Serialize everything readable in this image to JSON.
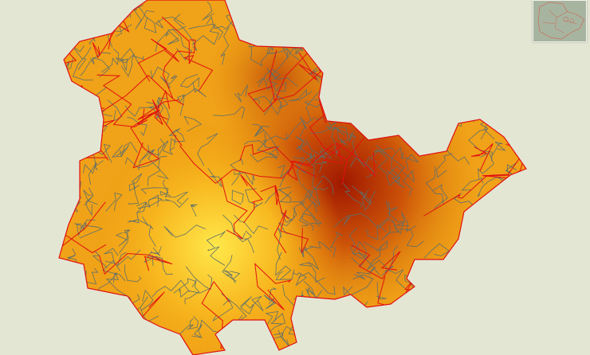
{
  "map": {
    "background_color": "#e4e6d4",
    "boundary_color": "#e01010",
    "municipality_line_color": "#5f6f6a",
    "elevation_colors": {
      "low": "#ffe040",
      "mid": "#f0a010",
      "high": "#b02000"
    }
  },
  "overview_map": {
    "background_color": "#a7b5a0",
    "line_color": "#c87060"
  }
}
